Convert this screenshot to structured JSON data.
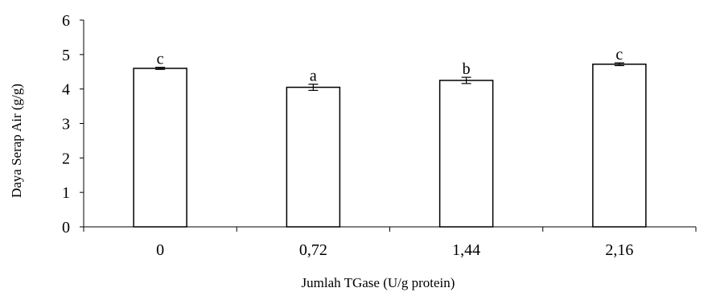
{
  "chart_data": {
    "type": "bar",
    "title": "",
    "xlabel": "Jumlah TGase (U/g protein)",
    "ylabel": "Daya Serap Air (g/g)",
    "categories": [
      "0",
      "0,72",
      "1,44",
      "2,16"
    ],
    "series": [
      {
        "values": [
          4.6,
          4.05,
          4.25,
          4.72
        ],
        "errors": [
          0.03,
          0.09,
          0.09,
          0.04
        ],
        "labels": [
          "c",
          "a",
          "b",
          "c"
        ]
      }
    ],
    "ylim": [
      0,
      6
    ],
    "yticks": [
      "0",
      "1",
      "2",
      "3",
      "4",
      "5",
      "6"
    ],
    "grid": false,
    "legend": "none",
    "colors": {
      "bar_fill": "#ffffff",
      "bar_stroke": "#000000",
      "axis": "#000000"
    }
  }
}
